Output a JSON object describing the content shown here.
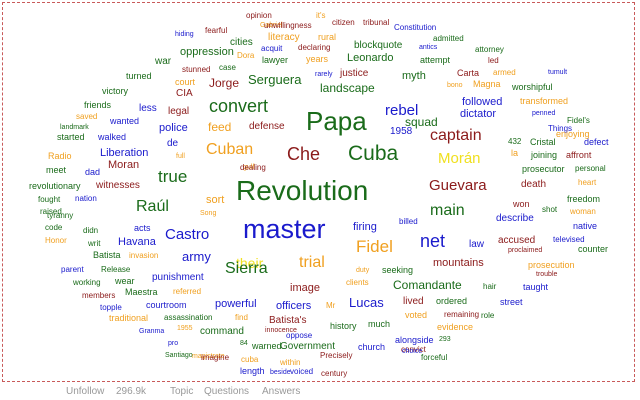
{
  "cloud": {
    "words": [
      {
        "text": "opinion",
        "color": "#8b1a1a"
      },
      {
        "text": "it's",
        "color": "#f0a020"
      },
      {
        "text": "citizen",
        "color": "#8b1a1a"
      },
      {
        "text": "tribunal",
        "color": "#8b1a1a"
      },
      {
        "text": "fearful",
        "color": "#8b1a1a"
      },
      {
        "text": "Gabriel",
        "color": "#f0a020"
      },
      {
        "text": "unwillingness",
        "color": "#8b1a1a"
      },
      {
        "text": "Constitution",
        "color": "#1a1acc"
      },
      {
        "text": "hiding",
        "color": "#1a1acc"
      },
      {
        "text": "literacy",
        "color": "#f0a020"
      },
      {
        "text": "rural",
        "color": "#f0a020"
      },
      {
        "text": "admitted",
        "color": "#1a6b1a"
      },
      {
        "text": "cities",
        "color": "#1a6b1a"
      },
      {
        "text": "acquit",
        "color": "#1a1acc"
      },
      {
        "text": "declaring",
        "color": "#8b1a1a"
      },
      {
        "text": "blockquote",
        "color": "#1a6b1a"
      },
      {
        "text": "antics",
        "color": "#1a1acc"
      },
      {
        "text": "attorney",
        "color": "#1a6b1a"
      },
      {
        "text": "oppression",
        "color": "#1a6b1a"
      },
      {
        "text": "Dora",
        "color": "#f0a020"
      },
      {
        "text": "lawyer",
        "color": "#1a6b1a"
      },
      {
        "text": "years",
        "color": "#f0a020"
      },
      {
        "text": "Leonardo",
        "color": "#1a6b1a"
      },
      {
        "text": "attempt",
        "color": "#1a6b1a"
      },
      {
        "text": "led",
        "color": "#8b1a1a"
      },
      {
        "text": "war",
        "color": "#1a6b1a"
      },
      {
        "text": "stunned",
        "color": "#8b1a1a"
      },
      {
        "text": "case",
        "color": "#1a6b1a"
      },
      {
        "text": "Carta",
        "color": "#8b1a1a"
      },
      {
        "text": "armed",
        "color": "#f0a020"
      },
      {
        "text": "tumult",
        "color": "#1a1acc"
      },
      {
        "text": "turned",
        "color": "#1a6b1a"
      },
      {
        "text": "court",
        "color": "#f0a020"
      },
      {
        "text": "Serguera",
        "color": "#1a6b1a"
      },
      {
        "text": "rarely",
        "color": "#1a1acc"
      },
      {
        "text": "justice",
        "color": "#8b1a1a"
      },
      {
        "text": "myth",
        "color": "#1a6b1a"
      },
      {
        "text": "bono",
        "color": "#f0a020"
      },
      {
        "text": "Magna",
        "color": "#f0a020"
      },
      {
        "text": "victory",
        "color": "#1a6b1a"
      },
      {
        "text": "CIA",
        "color": "#8b1a1a"
      },
      {
        "text": "Jorge",
        "color": "#8b1a1a"
      },
      {
        "text": "landscape",
        "color": "#1a6b1a"
      },
      {
        "text": "worshipful",
        "color": "#1a6b1a"
      },
      {
        "text": "friends",
        "color": "#1a6b1a"
      },
      {
        "text": "legal",
        "color": "#8b1a1a"
      },
      {
        "text": "convert",
        "color": "#1a6b1a"
      },
      {
        "text": "rebel",
        "color": "#1a1acc"
      },
      {
        "text": "followed",
        "color": "#1a1acc"
      },
      {
        "text": "transformed",
        "color": "#f0a020"
      },
      {
        "text": "less",
        "color": "#1a1acc"
      },
      {
        "text": "squad",
        "color": "#1a6b1a"
      },
      {
        "text": "penned",
        "color": "#1a1acc"
      },
      {
        "text": "saved",
        "color": "#f0a020"
      },
      {
        "text": "wanted",
        "color": "#1a1acc"
      },
      {
        "text": "Papa",
        "color": "#1a6b1a"
      },
      {
        "text": "dictator",
        "color": "#1a1acc"
      },
      {
        "text": "Fidel's",
        "color": "#1a6b1a"
      },
      {
        "text": "landmark",
        "color": "#1a6b1a"
      },
      {
        "text": "police",
        "color": "#1a1acc"
      },
      {
        "text": "feed",
        "color": "#f0a020"
      },
      {
        "text": "defense",
        "color": "#8b1a1a"
      },
      {
        "text": "1958",
        "color": "#1a1acc"
      },
      {
        "text": "Things",
        "color": "#1a1acc"
      },
      {
        "text": "enjoying",
        "color": "#f0a020"
      },
      {
        "text": "started",
        "color": "#1a6b1a"
      },
      {
        "text": "walked",
        "color": "#1a1acc"
      },
      {
        "text": "de",
        "color": "#1a1acc"
      },
      {
        "text": "captain",
        "color": "#8b1a1a"
      },
      {
        "text": "432",
        "color": "#1a6b1a"
      },
      {
        "text": "Cristal",
        "color": "#1a6b1a"
      },
      {
        "text": "defect",
        "color": "#1a1acc"
      },
      {
        "text": "Liberation",
        "color": "#1a1acc"
      },
      {
        "text": "Cuban",
        "color": "#f0a020"
      },
      {
        "text": "Che",
        "color": "#8b1a1a"
      },
      {
        "text": "Cuba",
        "color": "#1a6b1a"
      },
      {
        "text": "la",
        "color": "#f0a020"
      },
      {
        "text": "joining",
        "color": "#1a6b1a"
      },
      {
        "text": "affront",
        "color": "#8b1a1a"
      },
      {
        "text": "Radio",
        "color": "#f0a020"
      },
      {
        "text": "full",
        "color": "#f0a020"
      },
      {
        "text": "Morán",
        "color": "#f0e020"
      },
      {
        "text": "meet",
        "color": "#1a6b1a"
      },
      {
        "text": "Moran",
        "color": "#8b1a1a"
      },
      {
        "text": "gulf",
        "color": "#f0a020"
      },
      {
        "text": "dealing",
        "color": "#8b1a1a"
      },
      {
        "text": "prosecutor",
        "color": "#1a6b1a"
      },
      {
        "text": "personal",
        "color": "#1a6b1a"
      },
      {
        "text": "dad",
        "color": "#1a1acc"
      },
      {
        "text": "true",
        "color": "#1a6b1a"
      },
      {
        "text": "heart",
        "color": "#f0a020"
      },
      {
        "text": "revolutionary",
        "color": "#1a6b1a"
      },
      {
        "text": "witnesses",
        "color": "#8b1a1a"
      },
      {
        "text": "Revolution",
        "color": "#1a6b1a"
      },
      {
        "text": "Guevara",
        "color": "#8b1a1a"
      },
      {
        "text": "death",
        "color": "#8b1a1a"
      },
      {
        "text": "fought",
        "color": "#1a6b1a"
      },
      {
        "text": "nation",
        "color": "#1a1acc"
      },
      {
        "text": "sort",
        "color": "#f0a020"
      },
      {
        "text": "freedom",
        "color": "#1a6b1a"
      },
      {
        "text": "Raúl",
        "color": "#1a6b1a"
      },
      {
        "text": "raised",
        "color": "#1a6b1a"
      },
      {
        "text": "Song",
        "color": "#f0a020"
      },
      {
        "text": "main",
        "color": "#1a6b1a"
      },
      {
        "text": "won",
        "color": "#8b1a1a"
      },
      {
        "text": "shot",
        "color": "#1a6b1a"
      },
      {
        "text": "woman",
        "color": "#f0a020"
      },
      {
        "text": "tyranny",
        "color": "#1a6b1a"
      },
      {
        "text": "master",
        "color": "#1a1acc"
      },
      {
        "text": "billed",
        "color": "#1a1acc"
      },
      {
        "text": "describe",
        "color": "#1a1acc"
      },
      {
        "text": "native",
        "color": "#1a1acc"
      },
      {
        "text": "code",
        "color": "#1a6b1a"
      },
      {
        "text": "didn",
        "color": "#1a6b1a"
      },
      {
        "text": "acts",
        "color": "#1a1acc"
      },
      {
        "text": "firing",
        "color": "#1a1acc"
      },
      {
        "text": "Honor",
        "color": "#f0a020"
      },
      {
        "text": "Castro",
        "color": "#1a1acc"
      },
      {
        "text": "Fidel",
        "color": "#f0a020"
      },
      {
        "text": "net",
        "color": "#1a1acc"
      },
      {
        "text": "law",
        "color": "#1a1acc"
      },
      {
        "text": "accused",
        "color": "#8b1a1a"
      },
      {
        "text": "televised",
        "color": "#1a1acc"
      },
      {
        "text": "writ",
        "color": "#1a6b1a"
      },
      {
        "text": "Havana",
        "color": "#1a1acc"
      },
      {
        "text": "proclaimed",
        "color": "#8b1a1a"
      },
      {
        "text": "counter",
        "color": "#1a6b1a"
      },
      {
        "text": "Batista",
        "color": "#1a6b1a"
      },
      {
        "text": "invasion",
        "color": "#f0a020"
      },
      {
        "text": "army",
        "color": "#1a1acc"
      },
      {
        "text": "their",
        "color": "#f0e020"
      },
      {
        "text": "trial",
        "color": "#f0a020"
      },
      {
        "text": "mountains",
        "color": "#8b1a1a"
      },
      {
        "text": "prosecution",
        "color": "#f0a020"
      },
      {
        "text": "parent",
        "color": "#1a1acc"
      },
      {
        "text": "Release",
        "color": "#1a6b1a"
      },
      {
        "text": "Sierra",
        "color": "#1a6b1a"
      },
      {
        "text": "duty",
        "color": "#f0a020"
      },
      {
        "text": "seeking",
        "color": "#1a6b1a"
      },
      {
        "text": "trouble",
        "color": "#8b1a1a"
      },
      {
        "text": "working",
        "color": "#1a6b1a"
      },
      {
        "text": "wear",
        "color": "#1a6b1a"
      },
      {
        "text": "punishment",
        "color": "#1a1acc"
      },
      {
        "text": "image",
        "color": "#8b1a1a"
      },
      {
        "text": "clients",
        "color": "#f0a020"
      },
      {
        "text": "Comandante",
        "color": "#1a6b1a"
      },
      {
        "text": "hair",
        "color": "#1a6b1a"
      },
      {
        "text": "taught",
        "color": "#1a1acc"
      },
      {
        "text": "members",
        "color": "#8b1a1a"
      },
      {
        "text": "Maestra",
        "color": "#1a6b1a"
      },
      {
        "text": "referred",
        "color": "#f0a020"
      },
      {
        "text": "Lucas",
        "color": "#1a1acc"
      },
      {
        "text": "lived",
        "color": "#8b1a1a"
      },
      {
        "text": "ordered",
        "color": "#1a6b1a"
      },
      {
        "text": "street",
        "color": "#1a1acc"
      },
      {
        "text": "topple",
        "color": "#1a1acc"
      },
      {
        "text": "courtroom",
        "color": "#1a1acc"
      },
      {
        "text": "powerful",
        "color": "#1a1acc"
      },
      {
        "text": "officers",
        "color": "#1a1acc"
      },
      {
        "text": "Mr",
        "color": "#f0a020"
      },
      {
        "text": "voted",
        "color": "#f0a020"
      },
      {
        "text": "remaining",
        "color": "#8b1a1a"
      },
      {
        "text": "role",
        "color": "#1a6b1a"
      },
      {
        "text": "traditional",
        "color": "#f0a020"
      },
      {
        "text": "assassination",
        "color": "#1a6b1a"
      },
      {
        "text": "find",
        "color": "#f0a020"
      },
      {
        "text": "Batista's",
        "color": "#8b1a1a"
      },
      {
        "text": "history",
        "color": "#1a6b1a"
      },
      {
        "text": "much",
        "color": "#1a6b1a"
      },
      {
        "text": "evidence",
        "color": "#f0a020"
      },
      {
        "text": "Granma",
        "color": "#1a1acc"
      },
      {
        "text": "1955",
        "color": "#f0a020"
      },
      {
        "text": "command",
        "color": "#1a6b1a"
      },
      {
        "text": "innocence",
        "color": "#8b1a1a"
      },
      {
        "text": "oppose",
        "color": "#1a1acc"
      },
      {
        "text": "alongside",
        "color": "#1a1acc"
      },
      {
        "text": "293",
        "color": "#1a6b1a"
      },
      {
        "text": "pro",
        "color": "#1a1acc"
      },
      {
        "text": "84",
        "color": "#1a6b1a"
      },
      {
        "text": "warned",
        "color": "#1a6b1a"
      },
      {
        "text": "Government",
        "color": "#1a6b1a"
      },
      {
        "text": "church",
        "color": "#1a1acc"
      },
      {
        "text": "convict",
        "color": "#8b1a1a"
      },
      {
        "text": "Santiago",
        "color": "#1a6b1a"
      },
      {
        "text": "magistrate",
        "color": "#f0a020"
      },
      {
        "text": "imagine",
        "color": "#8b1a1a"
      },
      {
        "text": "cuba",
        "color": "#f0a020"
      },
      {
        "text": "Precisely",
        "color": "#8b1a1a"
      },
      {
        "text": "choice",
        "color": "#1a1acc"
      },
      {
        "text": "forceful",
        "color": "#1a6b1a"
      },
      {
        "text": "within",
        "color": "#f0a020"
      },
      {
        "text": "length",
        "color": "#1a1acc"
      },
      {
        "text": "beside",
        "color": "#1a1acc"
      },
      {
        "text": "voiced",
        "color": "#1a1acc"
      },
      {
        "text": "century",
        "color": "#8b1a1a"
      }
    ]
  },
  "bottom_bar": {
    "unfollow_label": "Unfollow",
    "count": "296.9k",
    "topic_label": "Topic",
    "questions_label": "Questions",
    "answers_label": "Answers"
  }
}
